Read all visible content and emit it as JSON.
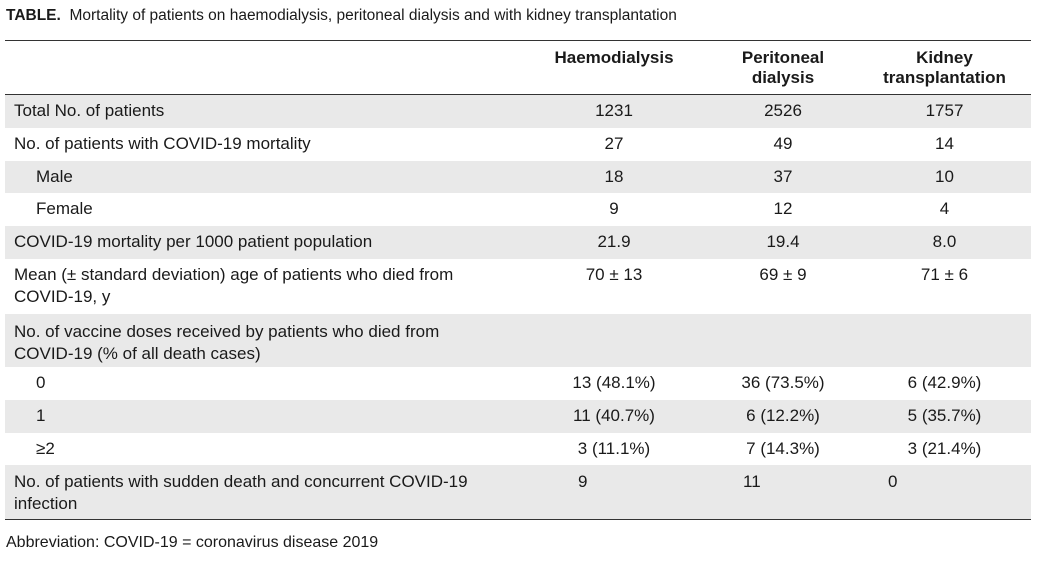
{
  "caption": {
    "prefix": "TABLE.",
    "text": "Mortality of patients on haemodialysis, peritoneal dialysis and with kidney transplantation"
  },
  "table": {
    "headers": [
      "",
      "Haemodialysis",
      "Peritoneal dialysis",
      "Kidney transplantation"
    ],
    "header_lines": {
      "haemodialysis": "Haemodialysis",
      "peritoneal_1": "Peritoneal",
      "peritoneal_2": "dialysis",
      "kidney_1": "Kidney",
      "kidney_2": "transplantation"
    },
    "rows": [
      {
        "label": "Total No. of patients",
        "values": [
          "1231",
          "2526",
          "1757"
        ]
      },
      {
        "label": "No. of patients with COVID-19 mortality",
        "values": [
          "27",
          "49",
          "14"
        ]
      },
      {
        "label": "Male",
        "values": [
          "18",
          "37",
          "10"
        ]
      },
      {
        "label": "Female",
        "values": [
          "9",
          "12",
          "4"
        ]
      },
      {
        "label": "COVID-19 mortality per 1000 patient population",
        "values": [
          "21.9",
          "19.4",
          "8.0"
        ]
      },
      {
        "label": "Mean (± standard deviation) age of patients who died from COVID-19, y",
        "values": [
          "70 ± 13",
          "69 ± 9",
          "71 ± 6"
        ]
      },
      {
        "label": "No. of vaccine doses received by patients who died from COVID-19 (% of all death cases)",
        "values": [
          "",
          "",
          ""
        ]
      },
      {
        "label": "0",
        "values": [
          "13 (48.1%)",
          "36 (73.5%)",
          "6 (42.9%)"
        ]
      },
      {
        "label": "1",
        "values": [
          "11 (40.7%)",
          "6 (12.2%)",
          "5 (35.7%)"
        ]
      },
      {
        "label": "≥2",
        "values": [
          "3 (11.1%)",
          "7 (14.3%)",
          "3 (21.4%)"
        ]
      },
      {
        "label": "No. of patients with sudden death and concurrent COVID-19 infection",
        "values": [
          "9",
          "11",
          "0"
        ]
      }
    ]
  },
  "footnote": "Abbreviation: COVID-19 = coronavirus disease 2019"
}
